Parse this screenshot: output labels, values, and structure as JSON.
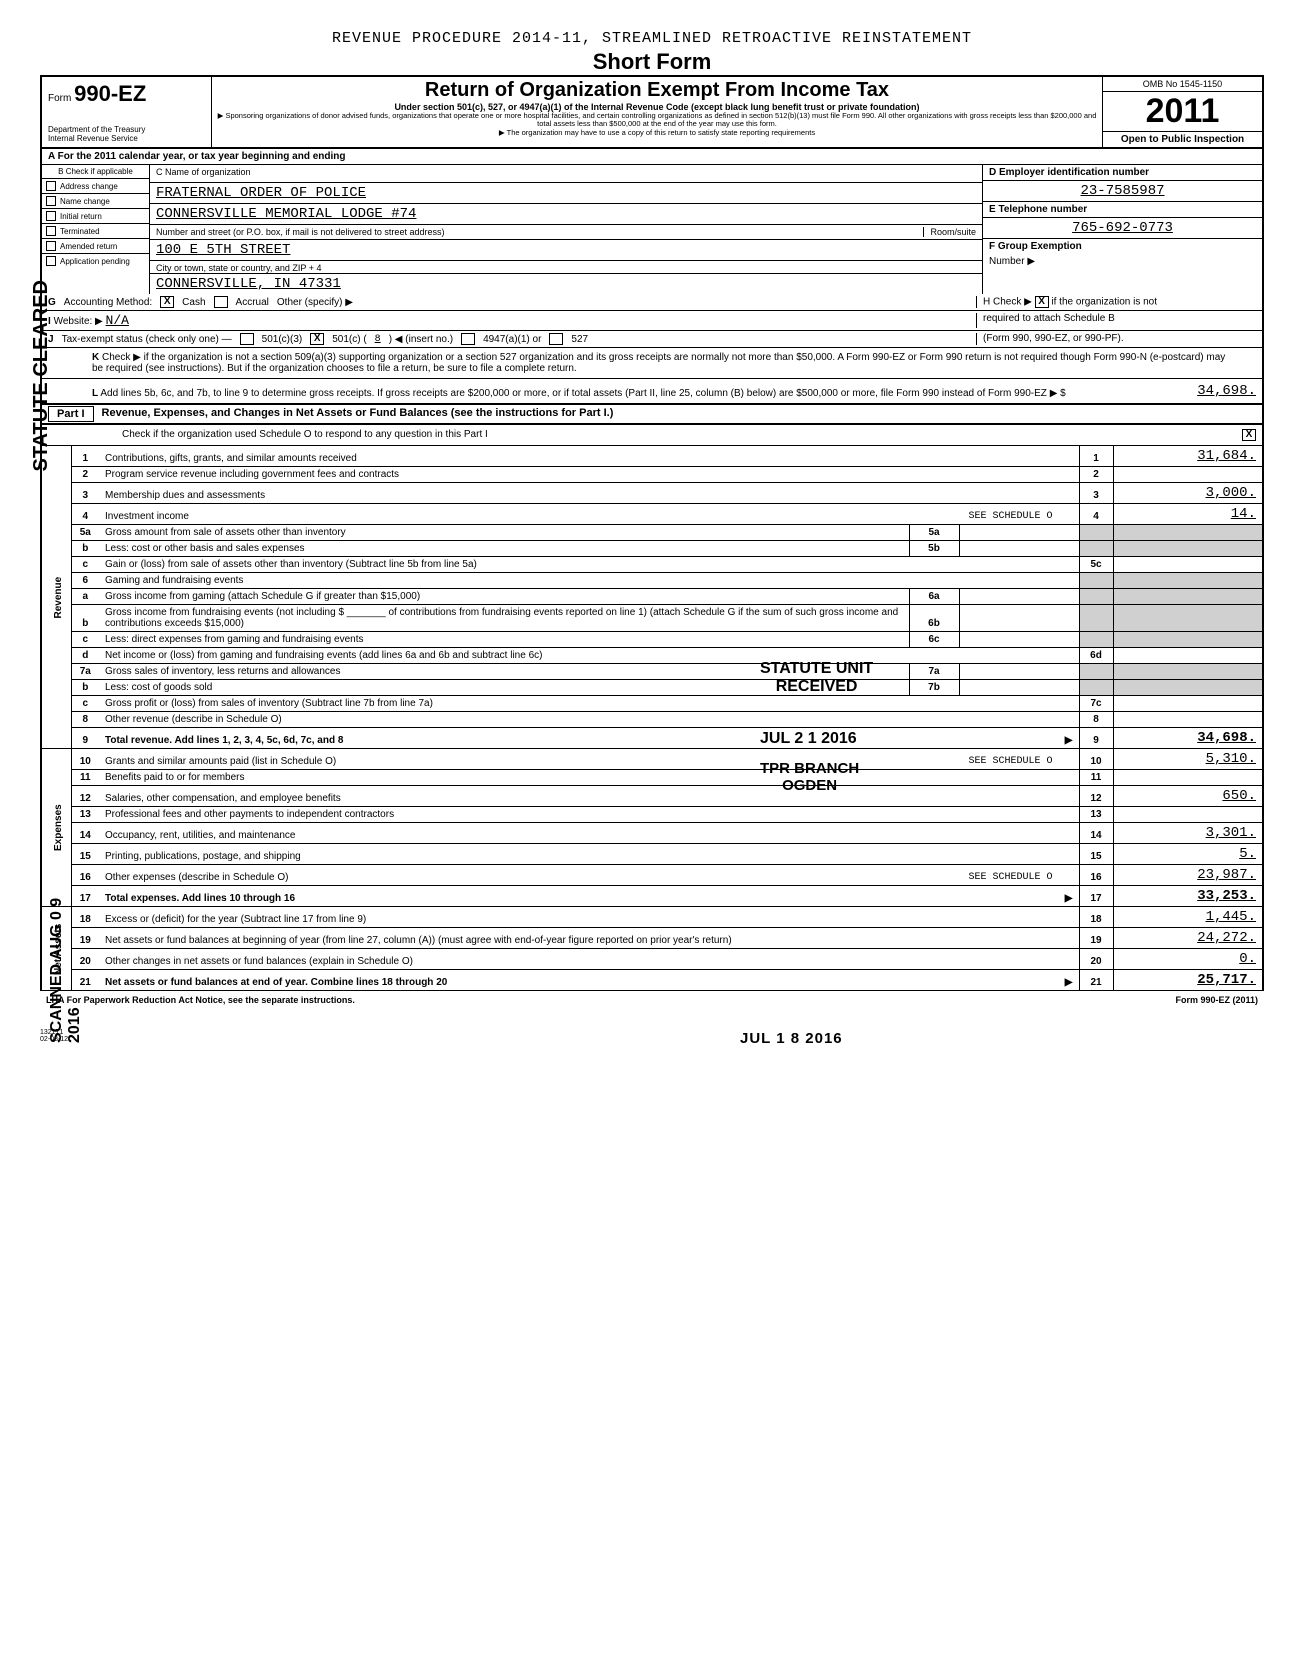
{
  "header": {
    "procedure": "REVENUE PROCEDURE 2014-11, STREAMLINED RETROACTIVE REINSTATEMENT",
    "short_form": "Short Form",
    "form_label": "Form",
    "form_number": "990-EZ",
    "dept": "Department of the Treasury",
    "irs": "Internal Revenue Service",
    "title": "Return of Organization Exempt From Income Tax",
    "subtitle": "Under section 501(c), 527, or 4947(a)(1) of the Internal Revenue Code (except black lung benefit trust or private foundation)",
    "note1": "Sponsoring organizations of donor advised funds, organizations that operate one or more hospital facilities, and certain controlling organizations as defined in section 512(b)(13) must file Form 990. All other organizations with gross receipts less than $200,000 and total assets less than $500,000 at the end of the year may use this form.",
    "note2": "The organization may have to use a copy of this return to satisfy state reporting requirements",
    "omb": "OMB No 1545-1150",
    "year": "2011",
    "open": "Open to Public Inspection"
  },
  "period": "For the 2011 calendar year, or tax year beginning                                                       and ending",
  "checkboxes": {
    "hdr": "Check if applicable",
    "opts": [
      "Address change",
      "Name change",
      "Initial return",
      "Terminated",
      "Amended return",
      "Application pending"
    ]
  },
  "entity": {
    "c_label": "C Name of organization",
    "name1": "FRATERNAL ORDER OF POLICE",
    "name2": "CONNERSVILLE MEMORIAL LODGE #74",
    "addr_label": "Number and street (or P.O. box, if mail is not delivered to street address)",
    "room": "Room/suite",
    "addr": "100 E 5TH STREET",
    "city_label": "City or town, state or country, and ZIP + 4",
    "city": "CONNERSVILLE, IN  47331",
    "d_label": "D Employer identification number",
    "ein": "23-7585987",
    "e_label": "E  Telephone number",
    "phone": "765-692-0773",
    "f_label": "F Group Exemption",
    "f_label2": "Number ▶"
  },
  "acct": {
    "label": "Accounting Method:",
    "cash": "Cash",
    "accrual": "Accrual",
    "other": "Other (specify) ▶",
    "h1": "H Check ▶",
    "h2": "if the organization is not",
    "h3": "required to attach Schedule B",
    "h4": "(Form 990, 990-EZ, or 990-PF).",
    "website_label": "Website: ▶",
    "website": "N/A",
    "status_label": "Tax-exempt status (check only one) —",
    "s1": "501(c)(3)",
    "s2": "501(c) (",
    "s2n": "8",
    "s2a": ") ◀ (insert no.)",
    "s3": "4947(a)(1) or",
    "s4": "527"
  },
  "k_check": "Check ▶           if the organization is not a section 509(a)(3) supporting organization or a section 527 organization and its gross receipts are normally not more than $50,000. A Form 990-EZ or Form 990 return is not required though Form 990-N (e-postcard) may be required (see instructions). But if the organization chooses to file a return, be sure to file a complete return.",
  "l_line": {
    "text": "Add lines 5b, 6c, and 7b, to line 9 to determine gross receipts. If gross receipts are $200,000 or more, or if total assets (Part II, line 25, column (B) below) are $500,000 or more, file Form 990 instead of Form 990-EZ",
    "arrow": "▶  $",
    "amount": "34,698."
  },
  "part1": {
    "label": "Part I",
    "title": "Revenue, Expenses, and Changes in Net Assets or Fund Balances (see the instructions for Part I.)",
    "check_text": "Check if the organization used Schedule O to respond to any question in this Part I"
  },
  "sections": {
    "revenue": "Revenue",
    "expenses": "Expenses",
    "netassets": "Net Assets"
  },
  "lines": [
    {
      "n": "1",
      "d": "Contributions, gifts, grants, and similar amounts received",
      "r": "1",
      "a": "31,684."
    },
    {
      "n": "2",
      "d": "Program service revenue including government fees and contracts",
      "r": "2",
      "a": ""
    },
    {
      "n": "3",
      "d": "Membership dues and assessments",
      "r": "3",
      "a": "3,000."
    },
    {
      "n": "4",
      "d": "Investment income",
      "extra": "SEE SCHEDULE O",
      "r": "4",
      "a": "14."
    },
    {
      "n": "5a",
      "d": "Gross amount from sale of assets other than inventory",
      "m": "5a",
      "mv": ""
    },
    {
      "n": "b",
      "d": "Less: cost or other basis and sales expenses",
      "m": "5b",
      "mv": ""
    },
    {
      "n": "c",
      "d": "Gain or (loss) from sale of assets other than inventory (Subtract line 5b from line 5a)",
      "r": "5c",
      "a": ""
    },
    {
      "n": "6",
      "d": "Gaming and fundraising events"
    },
    {
      "n": "a",
      "d": "Gross income from gaming (attach Schedule G if greater than $15,000)",
      "m": "6a",
      "mv": ""
    },
    {
      "n": "b",
      "d": "Gross income from fundraising events (not including $ _______ of contributions from fundraising events reported on line 1) (attach Schedule G if the sum of such gross income and contributions exceeds $15,000)",
      "m": "6b",
      "mv": ""
    },
    {
      "n": "c",
      "d": "Less: direct expenses from gaming and fundraising events",
      "m": "6c",
      "mv": ""
    },
    {
      "n": "d",
      "d": "Net income or (loss) from gaming and fundraising events (add lines 6a and 6b and subtract line 6c)",
      "r": "6d",
      "a": ""
    },
    {
      "n": "7a",
      "d": "Gross sales of inventory, less returns and allowances",
      "m": "7a",
      "mv": ""
    },
    {
      "n": "b",
      "d": "Less: cost of goods sold",
      "m": "7b",
      "mv": ""
    },
    {
      "n": "c",
      "d": "Gross profit or (loss) from sales of inventory (Subtract line 7b from line 7a)",
      "r": "7c",
      "a": ""
    },
    {
      "n": "8",
      "d": "Other revenue (describe in Schedule O)",
      "r": "8",
      "a": ""
    },
    {
      "n": "9",
      "d": "Total revenue. Add lines 1, 2, 3, 4, 5c, 6d, 7c, and 8",
      "bold": true,
      "arrow": true,
      "r": "9",
      "a": "34,698."
    },
    {
      "n": "10",
      "d": "Grants and similar amounts paid (list in Schedule O)",
      "extra": "SEE SCHEDULE O",
      "r": "10",
      "a": "5,310."
    },
    {
      "n": "11",
      "d": "Benefits paid to or for members",
      "r": "11",
      "a": ""
    },
    {
      "n": "12",
      "d": "Salaries, other compensation, and employee benefits",
      "r": "12",
      "a": "650."
    },
    {
      "n": "13",
      "d": "Professional fees and other payments to independent contractors",
      "r": "13",
      "a": ""
    },
    {
      "n": "14",
      "d": "Occupancy, rent, utilities, and maintenance",
      "r": "14",
      "a": "3,301."
    },
    {
      "n": "15",
      "d": "Printing, publications, postage, and shipping",
      "r": "15",
      "a": "5."
    },
    {
      "n": "16",
      "d": "Other expenses (describe in Schedule O)",
      "extra": "SEE SCHEDULE O",
      "r": "16",
      "a": "23,987."
    },
    {
      "n": "17",
      "d": "Total expenses. Add lines 10 through 16",
      "bold": true,
      "arrow": true,
      "r": "17",
      "a": "33,253."
    },
    {
      "n": "18",
      "d": "Excess or (deficit) for the year (Subtract line 17 from line 9)",
      "r": "18",
      "a": "1,445."
    },
    {
      "n": "19",
      "d": "Net assets or fund balances at beginning of year (from line 27, column (A)) (must agree with end-of-year figure reported on prior year's return)",
      "r": "19",
      "a": "24,272."
    },
    {
      "n": "20",
      "d": "Other changes in net assets or fund balances (explain in Schedule O)",
      "r": "20",
      "a": "0."
    },
    {
      "n": "21",
      "d": "Net assets or fund balances at end of year. Combine lines 18 through 20",
      "bold": true,
      "arrow": true,
      "r": "21",
      "a": "25,717."
    }
  ],
  "footer": {
    "left": "LHA  For Paperwork Reduction Act Notice, see the separate instructions.",
    "right": "Form 990-EZ (2011)",
    "code1": "132171",
    "code2": "02-08-12"
  },
  "stamps": {
    "statute": "STATUTE UNIT\nRECEIVED",
    "date1": "JUL 2 1 2016",
    "branch": "TPR BRANCH\nOGDEN",
    "date2": "JUL 1 8 2016",
    "left1": "STATUTE CLEARED",
    "left2": "SCANNED AUG 0 9 2016"
  }
}
